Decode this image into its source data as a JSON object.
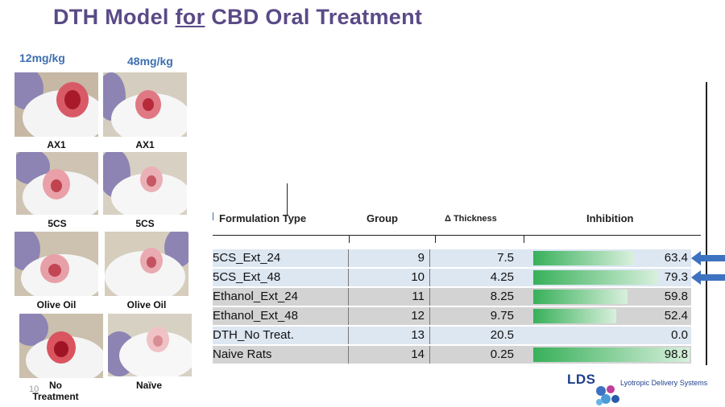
{
  "slide": {
    "title_part1": "DTH Model ",
    "title_part2": "for",
    "title_part3": "  CBD Oral Treatment",
    "page_number": "10"
  },
  "doses": {
    "low": "12mg/kg",
    "high": "48mg/kg"
  },
  "photos": {
    "captions": {
      "ax1_low": "AX1",
      "ax1_high": "AX1",
      "fivecs_low": "5CS",
      "fivecs_high": "5CS",
      "olive_low": "Olive Oil",
      "olive_high": "Olive Oil",
      "no_treat_line1": "No",
      "no_treat_line2": "Treatment",
      "naive": "Naïve"
    }
  },
  "table": {
    "headers": {
      "type": "Formulation Type",
      "group": "Group",
      "thickness": "Δ Thickness",
      "inhibition": "Inhibition"
    },
    "rows": [
      {
        "type": "5CS_Ext_24",
        "group": "9",
        "thickness": "7.5",
        "inhibition": "63.4",
        "inhibition_value": 63.4
      },
      {
        "type": "5CS_Ext_48",
        "group": "10",
        "thickness": "4.25",
        "inhibition": "79.3",
        "inhibition_value": 79.3
      },
      {
        "type": "Ethanol_Ext_24",
        "group": "11",
        "thickness": "8.25",
        "inhibition": "59.8",
        "inhibition_value": 59.8
      },
      {
        "type": "Ethanol_Ext_48",
        "group": "12",
        "thickness": "9.75",
        "inhibition": "52.4",
        "inhibition_value": 52.4
      },
      {
        "type": "DTH_No Treat.",
        "group": "13",
        "thickness": "20.5",
        "inhibition": "0.0",
        "inhibition_value": 0.0
      },
      {
        "type": "Naive Rats",
        "group": "14",
        "thickness": "0.25",
        "inhibition": "98.8",
        "inhibition_value": 98.8
      }
    ]
  },
  "logo": {
    "abbr": "LDS",
    "name": "Lyotropic Delivery Systems"
  },
  "colors": {
    "title": "#5a4a87",
    "dose": "#3d6fb0",
    "bar_start": "#38b05a",
    "arrow": "#3d72c0",
    "logo": "#1f3f8a"
  }
}
